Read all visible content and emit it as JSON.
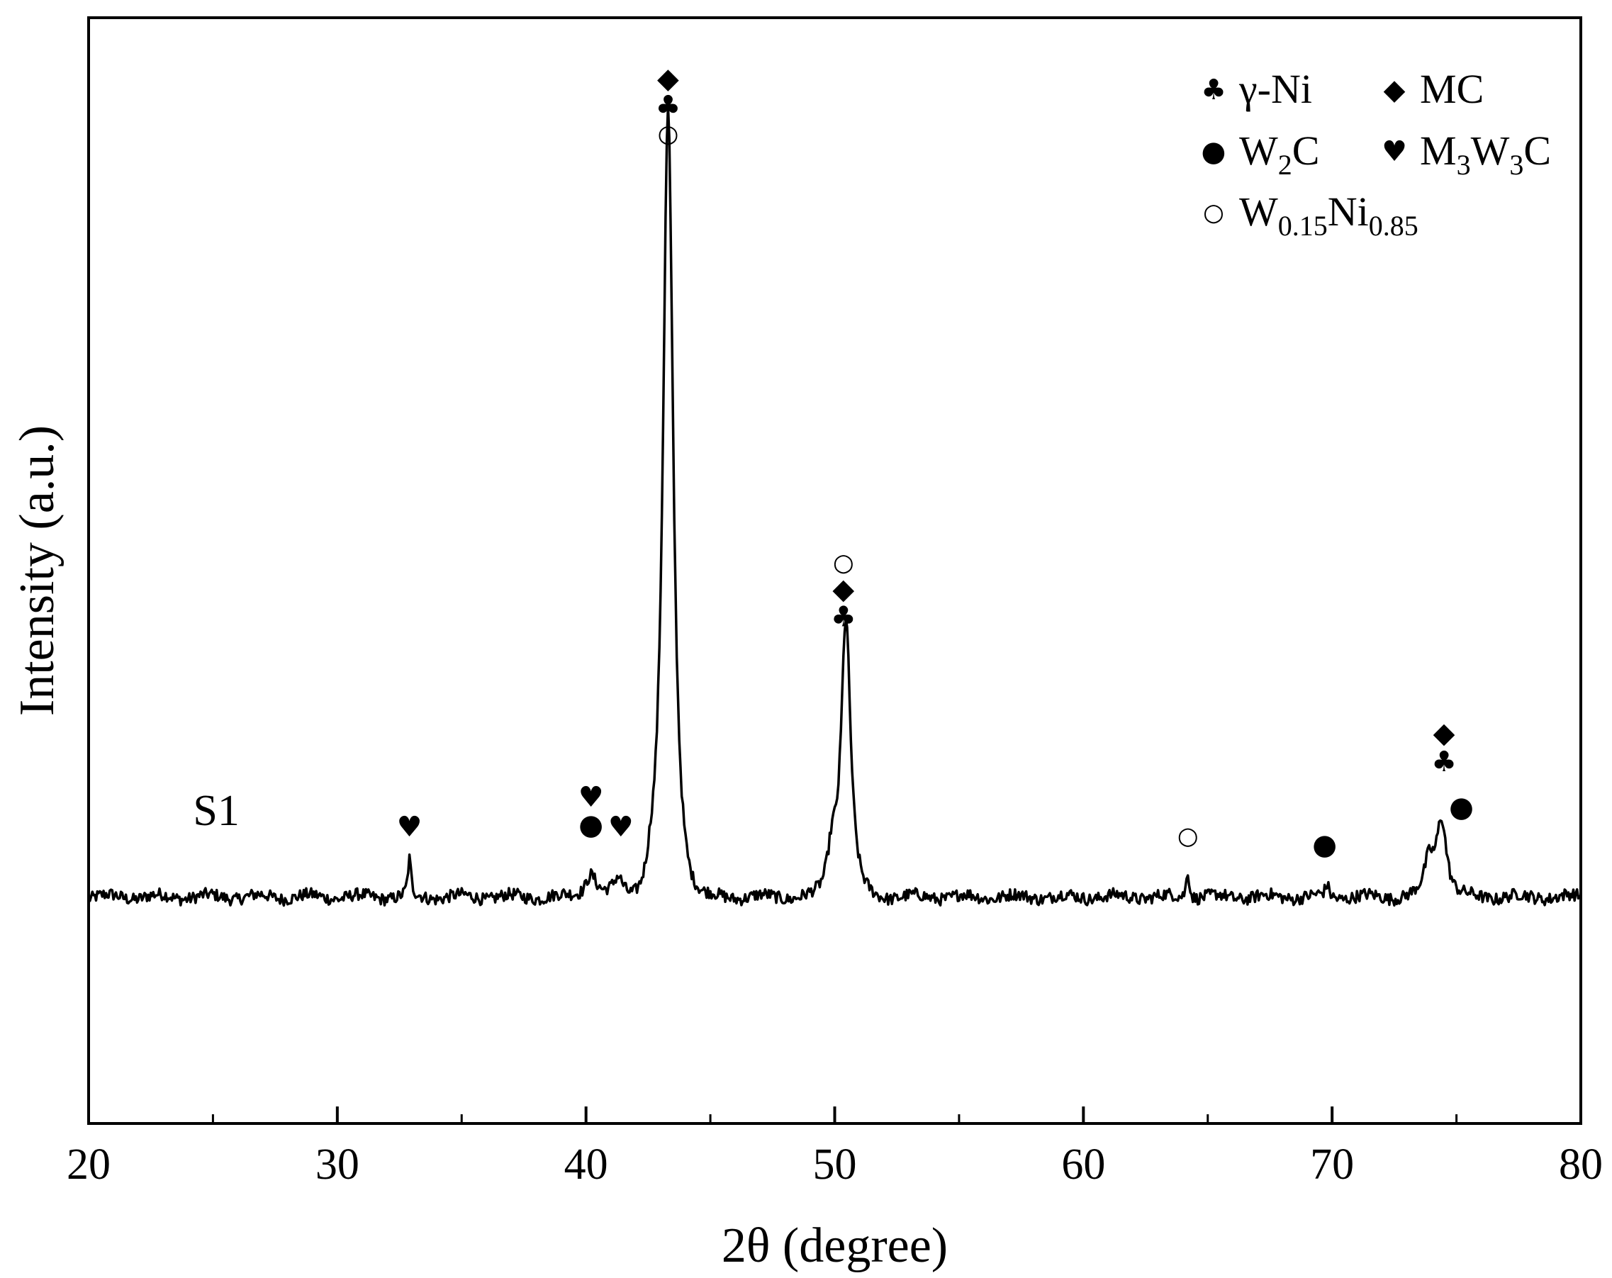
{
  "chart_data": {
    "type": "line",
    "title": "",
    "xlabel": "2θ (degree)",
    "ylabel": "Intensity (a.u.)",
    "xlim": [
      20,
      80
    ],
    "ylim": [
      0,
      100
    ],
    "x_ticks": [
      20,
      30,
      40,
      50,
      60,
      70,
      80
    ],
    "x_minor_ticks": [
      25,
      35,
      45,
      55,
      65,
      75
    ],
    "y_tick_labels": "none",
    "grid": false,
    "legend_position": "top-right",
    "sample_label": {
      "text": "S1",
      "x": 24.2,
      "y": 27
    },
    "baseline": 20.5,
    "noise_amplitude": 0.55,
    "peaks": [
      {
        "x": 32.9,
        "height": 3.2,
        "width": 0.1
      },
      {
        "x": 40.2,
        "height": 2.2,
        "width": 0.35
      },
      {
        "x": 41.3,
        "height": 1.6,
        "width": 0.3
      },
      {
        "x": 42.6,
        "height": 1.4,
        "width": 0.25
      },
      {
        "x": 43.3,
        "height": 71.0,
        "width": 0.32
      },
      {
        "x": 49.9,
        "height": 4.0,
        "width": 0.3
      },
      {
        "x": 50.45,
        "height": 25.0,
        "width": 0.3
      },
      {
        "x": 64.2,
        "height": 2.5,
        "width": 0.1
      },
      {
        "x": 69.8,
        "height": 1.0,
        "width": 0.12
      },
      {
        "x": 73.9,
        "height": 3.0,
        "width": 0.3
      },
      {
        "x": 74.4,
        "height": 7.0,
        "width": 0.32
      }
    ],
    "phases": [
      {
        "key": "gamma-ni",
        "label": "γ-Ni",
        "symbol": "♣"
      },
      {
        "key": "mc",
        "label": "MC",
        "symbol": "◆"
      },
      {
        "key": "w2c",
        "label_base": "W",
        "label_sub": "2",
        "label_tail": "C",
        "symbol": "●"
      },
      {
        "key": "m3w3c",
        "label_base": "M",
        "label_sub": "3",
        "label_mid": "W",
        "label_sub2": "3",
        "label_tail": "C",
        "symbol": "♥"
      },
      {
        "key": "w-ni",
        "label_base": "W",
        "label_sub": "0.15",
        "label_mid": "Ni",
        "label_sub2": "0.85",
        "symbol": "○"
      }
    ],
    "peak_markers": [
      {
        "x": 32.9,
        "y": 26.8,
        "phase": "m3w3c"
      },
      {
        "x": 40.2,
        "y": 29.5,
        "phase": "m3w3c"
      },
      {
        "x": 40.2,
        "y": 27.0,
        "phase": "w2c"
      },
      {
        "x": 41.4,
        "y": 26.8,
        "phase": "m3w3c"
      },
      {
        "x": 43.3,
        "y": 94.5,
        "phase": "mc"
      },
      {
        "x": 43.3,
        "y": 92.0,
        "phase": "gamma-ni"
      },
      {
        "x": 43.3,
        "y": 89.5,
        "phase": "w-ni"
      },
      {
        "x": 50.35,
        "y": 50.7,
        "phase": "w-ni"
      },
      {
        "x": 50.35,
        "y": 48.3,
        "phase": "mc"
      },
      {
        "x": 50.35,
        "y": 45.8,
        "phase": "gamma-ni"
      },
      {
        "x": 64.2,
        "y": 26.0,
        "phase": "w-ni"
      },
      {
        "x": 69.7,
        "y": 25.2,
        "phase": "w2c"
      },
      {
        "x": 74.5,
        "y": 35.3,
        "phase": "mc"
      },
      {
        "x": 74.5,
        "y": 32.7,
        "phase": "gamma-ni"
      },
      {
        "x": 75.2,
        "y": 28.6,
        "phase": "w2c"
      }
    ]
  }
}
